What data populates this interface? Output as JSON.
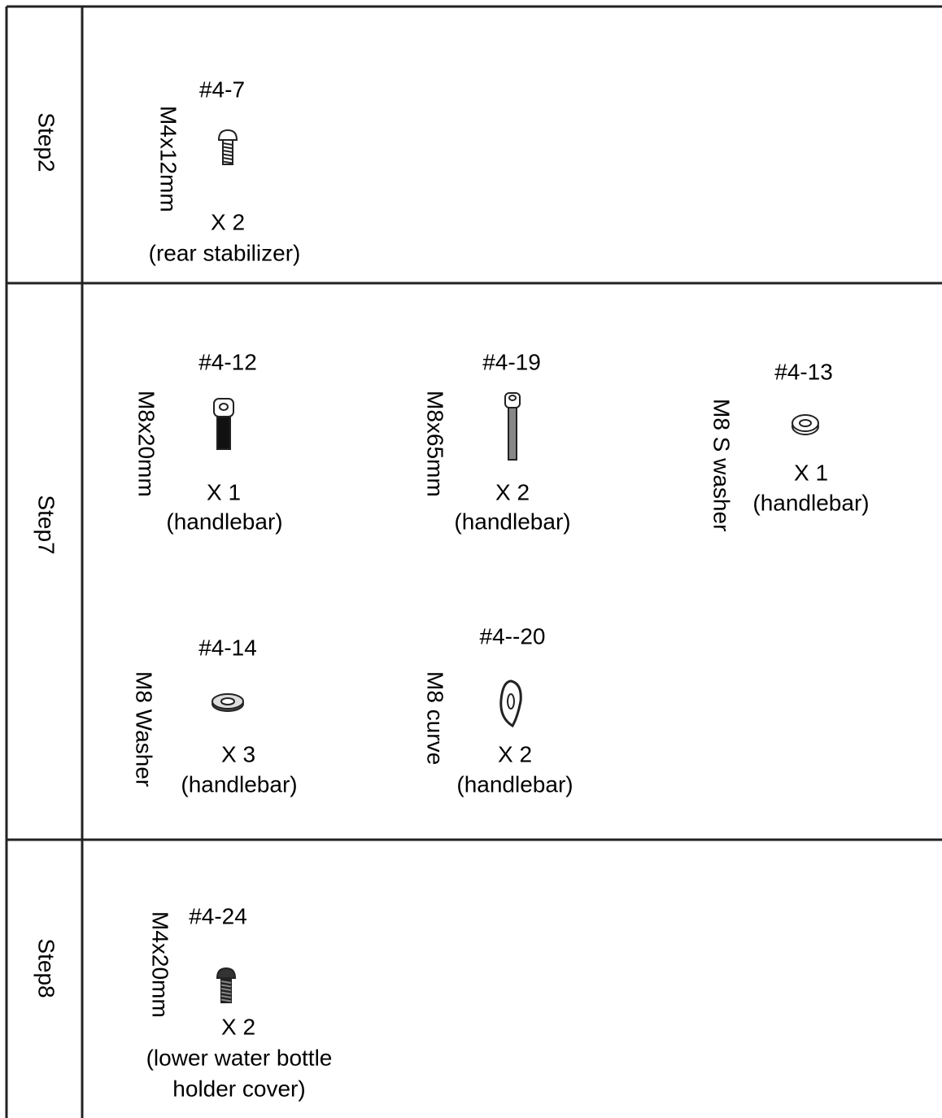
{
  "rows": [
    {
      "step": "Step2",
      "parts": [
        {
          "id": "#4-7",
          "size": "M4x12mm",
          "qty": "X 2",
          "use": "(rear stabilizer)"
        }
      ]
    },
    {
      "step": "Step7",
      "parts": [
        {
          "id": "#4-12",
          "size": "M8x20mm",
          "qty": "X 1",
          "use": "(handlebar)"
        },
        {
          "id": "#4-19",
          "size": "M8x65mm",
          "qty": "X 2",
          "use": "(handlebar)"
        },
        {
          "id": "#4-13",
          "size": "M8 S washer",
          "qty": "X 1",
          "use": "(handlebar)"
        },
        {
          "id": "#4-14",
          "size": "M8 Washer",
          "qty": "X 3",
          "use": "(handlebar)"
        },
        {
          "id": "#4--20",
          "size": "M8 curve",
          "qty": "X 2",
          "use": "(handlebar)"
        }
      ]
    },
    {
      "step": "Step8",
      "parts": [
        {
          "id": "#4-24",
          "size": "M4x20mm",
          "qty": "X 2",
          "use": [
            "(lower water bottle",
            "holder cover)"
          ]
        }
      ]
    }
  ]
}
